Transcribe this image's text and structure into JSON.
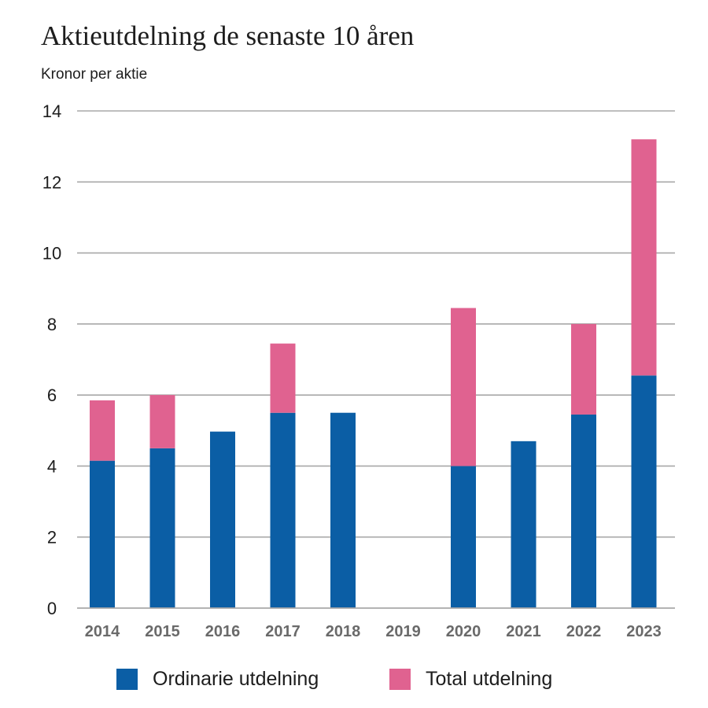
{
  "chart_data": {
    "type": "bar",
    "stacked": true,
    "title": "Aktieutdelning de senaste 10 åren",
    "ylabel": "Kronor per aktie",
    "xlabel": "",
    "categories": [
      "2014",
      "2015",
      "2016",
      "2017",
      "2018",
      "2019",
      "2020",
      "2021",
      "2022",
      "2023"
    ],
    "series": [
      {
        "name": "Ordinarie utdelning",
        "color": "#0b5ea5",
        "values": [
          4.15,
          4.5,
          4.97,
          5.5,
          5.5,
          0,
          4.0,
          4.7,
          5.45,
          6.55
        ]
      },
      {
        "name": "Total utdelning",
        "color": "#e06290",
        "values": [
          1.7,
          1.5,
          0,
          1.95,
          0,
          0,
          4.45,
          0,
          2.55,
          6.65
        ]
      }
    ],
    "ylim": [
      0,
      14
    ],
    "yticks": [
      "0",
      "2",
      "4",
      "6",
      "8",
      "10",
      "12",
      "14"
    ],
    "grid": true,
    "legend": "bottom"
  }
}
